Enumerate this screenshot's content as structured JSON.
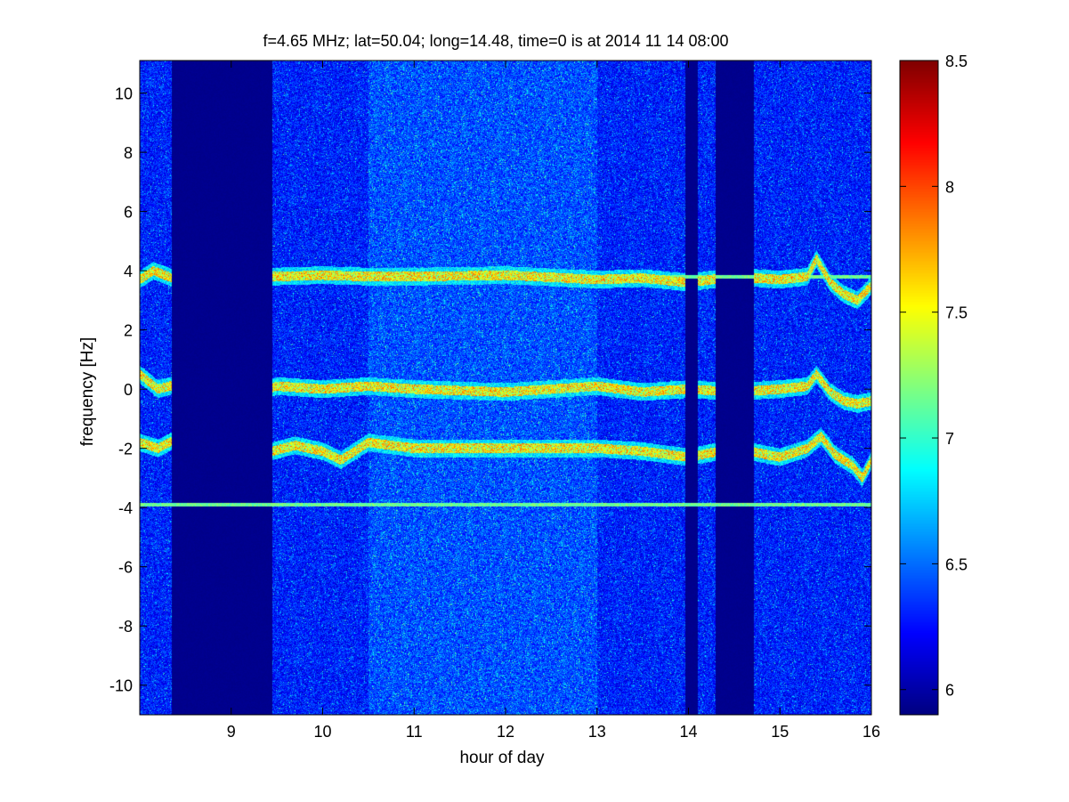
{
  "chart_data": {
    "type": "heatmap",
    "title": "f=4.65 MHz;  lat=50.04; long=14.48, time=0 is at 2014 11 14 08:00",
    "xlabel": "hour of day",
    "ylabel": "frequency [Hz]",
    "xlim": [
      8.0,
      16.0
    ],
    "ylim": [
      -11.0,
      11.1
    ],
    "xticks": [
      9,
      10,
      11,
      12,
      13,
      14,
      15,
      16
    ],
    "yticks": [
      -10,
      -8,
      -6,
      -4,
      -2,
      0,
      2,
      4,
      6,
      8,
      10
    ],
    "colorbar": {
      "range": [
        5.9,
        8.5
      ],
      "ticks": [
        6,
        6.5,
        7,
        7.5,
        8,
        8.5
      ],
      "colormap": "jet"
    },
    "background_level": 6.3,
    "quiet_intervals": [
      [
        8.35,
        9.45
      ],
      [
        13.97,
        14.1
      ],
      [
        14.3,
        14.72
      ]
    ],
    "bright_interval": [
      10.5,
      13.0
    ],
    "traces": [
      {
        "center": 3.8,
        "points": [
          [
            8.0,
            3.7
          ],
          [
            8.15,
            4.0
          ],
          [
            8.4,
            3.7
          ],
          [
            8.55,
            4.1
          ],
          [
            8.75,
            3.8
          ],
          [
            9.0,
            3.9
          ],
          [
            9.25,
            3.7
          ],
          [
            9.45,
            3.8
          ],
          [
            10.0,
            3.85
          ],
          [
            10.5,
            3.8
          ],
          [
            11.0,
            3.8
          ],
          [
            12.0,
            3.85
          ],
          [
            13.0,
            3.7
          ],
          [
            13.5,
            3.75
          ],
          [
            14.0,
            3.6
          ],
          [
            14.5,
            3.8
          ],
          [
            15.0,
            3.7
          ],
          [
            15.3,
            3.8
          ],
          [
            15.4,
            4.4
          ],
          [
            15.55,
            3.6
          ],
          [
            15.7,
            3.2
          ],
          [
            15.85,
            3.0
          ],
          [
            16.0,
            3.5
          ]
        ]
      },
      {
        "center": 0.0,
        "points": [
          [
            8.0,
            0.5
          ],
          [
            8.2,
            0.0
          ],
          [
            8.45,
            0.2
          ],
          [
            8.7,
            -0.1
          ],
          [
            9.0,
            0.2
          ],
          [
            9.3,
            -0.1
          ],
          [
            9.5,
            0.1
          ],
          [
            10.0,
            0.0
          ],
          [
            10.5,
            0.1
          ],
          [
            11.0,
            0.0
          ],
          [
            12.0,
            -0.1
          ],
          [
            13.0,
            0.1
          ],
          [
            13.5,
            -0.1
          ],
          [
            14.0,
            0.0
          ],
          [
            14.5,
            -0.1
          ],
          [
            15.0,
            0.0
          ],
          [
            15.3,
            0.1
          ],
          [
            15.4,
            0.5
          ],
          [
            15.55,
            -0.1
          ],
          [
            15.7,
            -0.4
          ],
          [
            15.85,
            -0.5
          ],
          [
            16.0,
            -0.4
          ]
        ]
      },
      {
        "center": -2.0,
        "points": [
          [
            8.0,
            -1.8
          ],
          [
            8.2,
            -2.0
          ],
          [
            8.45,
            -1.6
          ],
          [
            8.6,
            -2.2
          ],
          [
            8.8,
            -1.7
          ],
          [
            9.0,
            -1.9
          ],
          [
            9.2,
            -1.6
          ],
          [
            9.45,
            -2.1
          ],
          [
            9.7,
            -1.9
          ],
          [
            10.0,
            -2.1
          ],
          [
            10.2,
            -2.4
          ],
          [
            10.5,
            -1.8
          ],
          [
            11.0,
            -2.0
          ],
          [
            12.0,
            -2.0
          ],
          [
            13.0,
            -2.0
          ],
          [
            13.5,
            -2.1
          ],
          [
            14.0,
            -2.3
          ],
          [
            14.5,
            -2.0
          ],
          [
            15.0,
            -2.3
          ],
          [
            15.3,
            -2.0
          ],
          [
            15.45,
            -1.6
          ],
          [
            15.6,
            -2.2
          ],
          [
            15.8,
            -2.6
          ],
          [
            15.9,
            -3.0
          ],
          [
            16.0,
            -2.4
          ]
        ]
      }
    ],
    "spectral_lines": [
      {
        "y": 3.8,
        "x": [
          13.7,
          16.0
        ]
      },
      {
        "y": -3.9,
        "x": [
          8.0,
          16.0
        ]
      }
    ]
  }
}
